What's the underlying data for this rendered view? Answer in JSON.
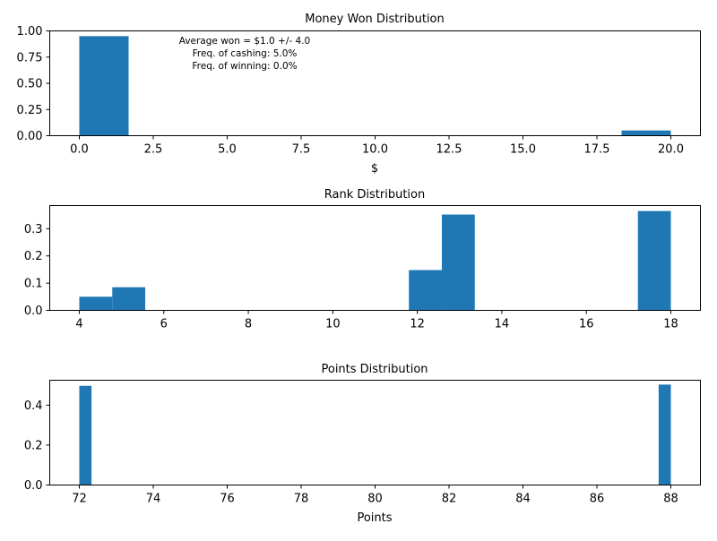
{
  "chart_data": [
    {
      "type": "bar",
      "title": "Money Won Distribution",
      "xlabel": "$",
      "ylabel": "",
      "xlim": [
        -1,
        21
      ],
      "ylim": [
        0,
        1.0
      ],
      "xticks": [
        0,
        2.5,
        5,
        7.5,
        10,
        12.5,
        15,
        17.5,
        20
      ],
      "xtick_labels": [
        "0.0",
        "2.5",
        "5.0",
        "7.5",
        "10.0",
        "12.5",
        "15.0",
        "17.5",
        "20.0"
      ],
      "yticks": [
        0,
        0.25,
        0.5,
        0.75,
        1.0
      ],
      "ytick_labels": [
        "0.00",
        "0.25",
        "0.50",
        "0.75",
        "1.00"
      ],
      "bars": [
        {
          "x0": 0,
          "x1": 1.667,
          "value": 0.95
        },
        {
          "x0": 18.333,
          "x1": 20,
          "value": 0.05
        }
      ],
      "annotations": [
        "Average won = $1.0 +/- 4.0",
        "Freq. of cashing: 5.0%",
        "Freq. of winning: 0.0%"
      ],
      "color": "#1f77b4"
    },
    {
      "type": "bar",
      "title": "Rank Distribution",
      "xlabel": "",
      "ylabel": "",
      "xlim": [
        3.3,
        18.7
      ],
      "ylim": [
        0,
        0.385
      ],
      "xticks": [
        4,
        6,
        8,
        10,
        12,
        14,
        16,
        18
      ],
      "xtick_labels": [
        "4",
        "6",
        "8",
        "10",
        "12",
        "14",
        "16",
        "18"
      ],
      "yticks": [
        0,
        0.1,
        0.2,
        0.3
      ],
      "ytick_labels": [
        "0.0",
        "0.1",
        "0.2",
        "0.3"
      ],
      "bars": [
        {
          "x0": 4.0,
          "x1": 4.78,
          "value": 0.05
        },
        {
          "x0": 4.78,
          "x1": 5.56,
          "value": 0.085
        },
        {
          "x0": 11.8,
          "x1": 12.58,
          "value": 0.148
        },
        {
          "x0": 12.58,
          "x1": 13.36,
          "value": 0.352
        },
        {
          "x0": 17.22,
          "x1": 18.0,
          "value": 0.365
        }
      ],
      "color": "#1f77b4"
    },
    {
      "type": "bar",
      "title": "Points Distribution",
      "xlabel": "Points",
      "ylabel": "",
      "xlim": [
        71.2,
        88.8
      ],
      "ylim": [
        0,
        0.525
      ],
      "xticks": [
        72,
        74,
        76,
        78,
        80,
        82,
        84,
        86,
        88
      ],
      "xtick_labels": [
        "72",
        "74",
        "76",
        "78",
        "80",
        "82",
        "84",
        "86",
        "88"
      ],
      "yticks": [
        0,
        0.2,
        0.4
      ],
      "ytick_labels": [
        "0.0",
        "0.2",
        "0.4"
      ],
      "bars": [
        {
          "x0": 72.0,
          "x1": 72.33,
          "value": 0.497
        },
        {
          "x0": 87.67,
          "x1": 88.0,
          "value": 0.503
        }
      ],
      "color": "#1f77b4"
    }
  ]
}
